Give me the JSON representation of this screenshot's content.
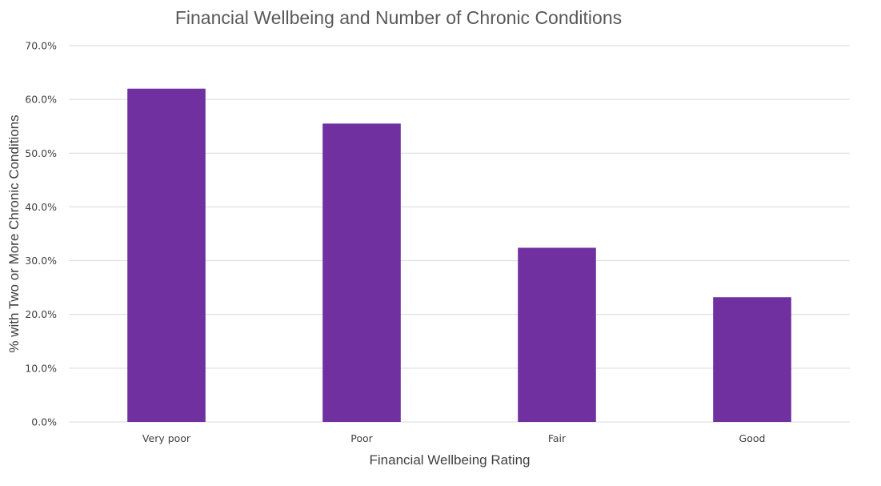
{
  "chart_data": {
    "type": "bar",
    "title": "Financial Wellbeing and Number of Chronic Conditions",
    "xlabel": "Financial Wellbeing Rating",
    "ylabel": "% with Two or More Chronic Conditions",
    "categories": [
      "Very poor",
      "Poor",
      "Fair",
      "Good"
    ],
    "values": [
      62.0,
      55.5,
      32.4,
      23.2
    ],
    "ylim": [
      0,
      70
    ],
    "yticks": [
      0,
      10,
      20,
      30,
      40,
      50,
      60,
      70
    ],
    "ytick_labels": [
      "0.0%",
      "10.0%",
      "20.0%",
      "30.0%",
      "40.0%",
      "50.0%",
      "60.0%",
      "70.0%"
    ],
    "grid": true,
    "legend": "none",
    "bar_color": "#7030A0"
  }
}
